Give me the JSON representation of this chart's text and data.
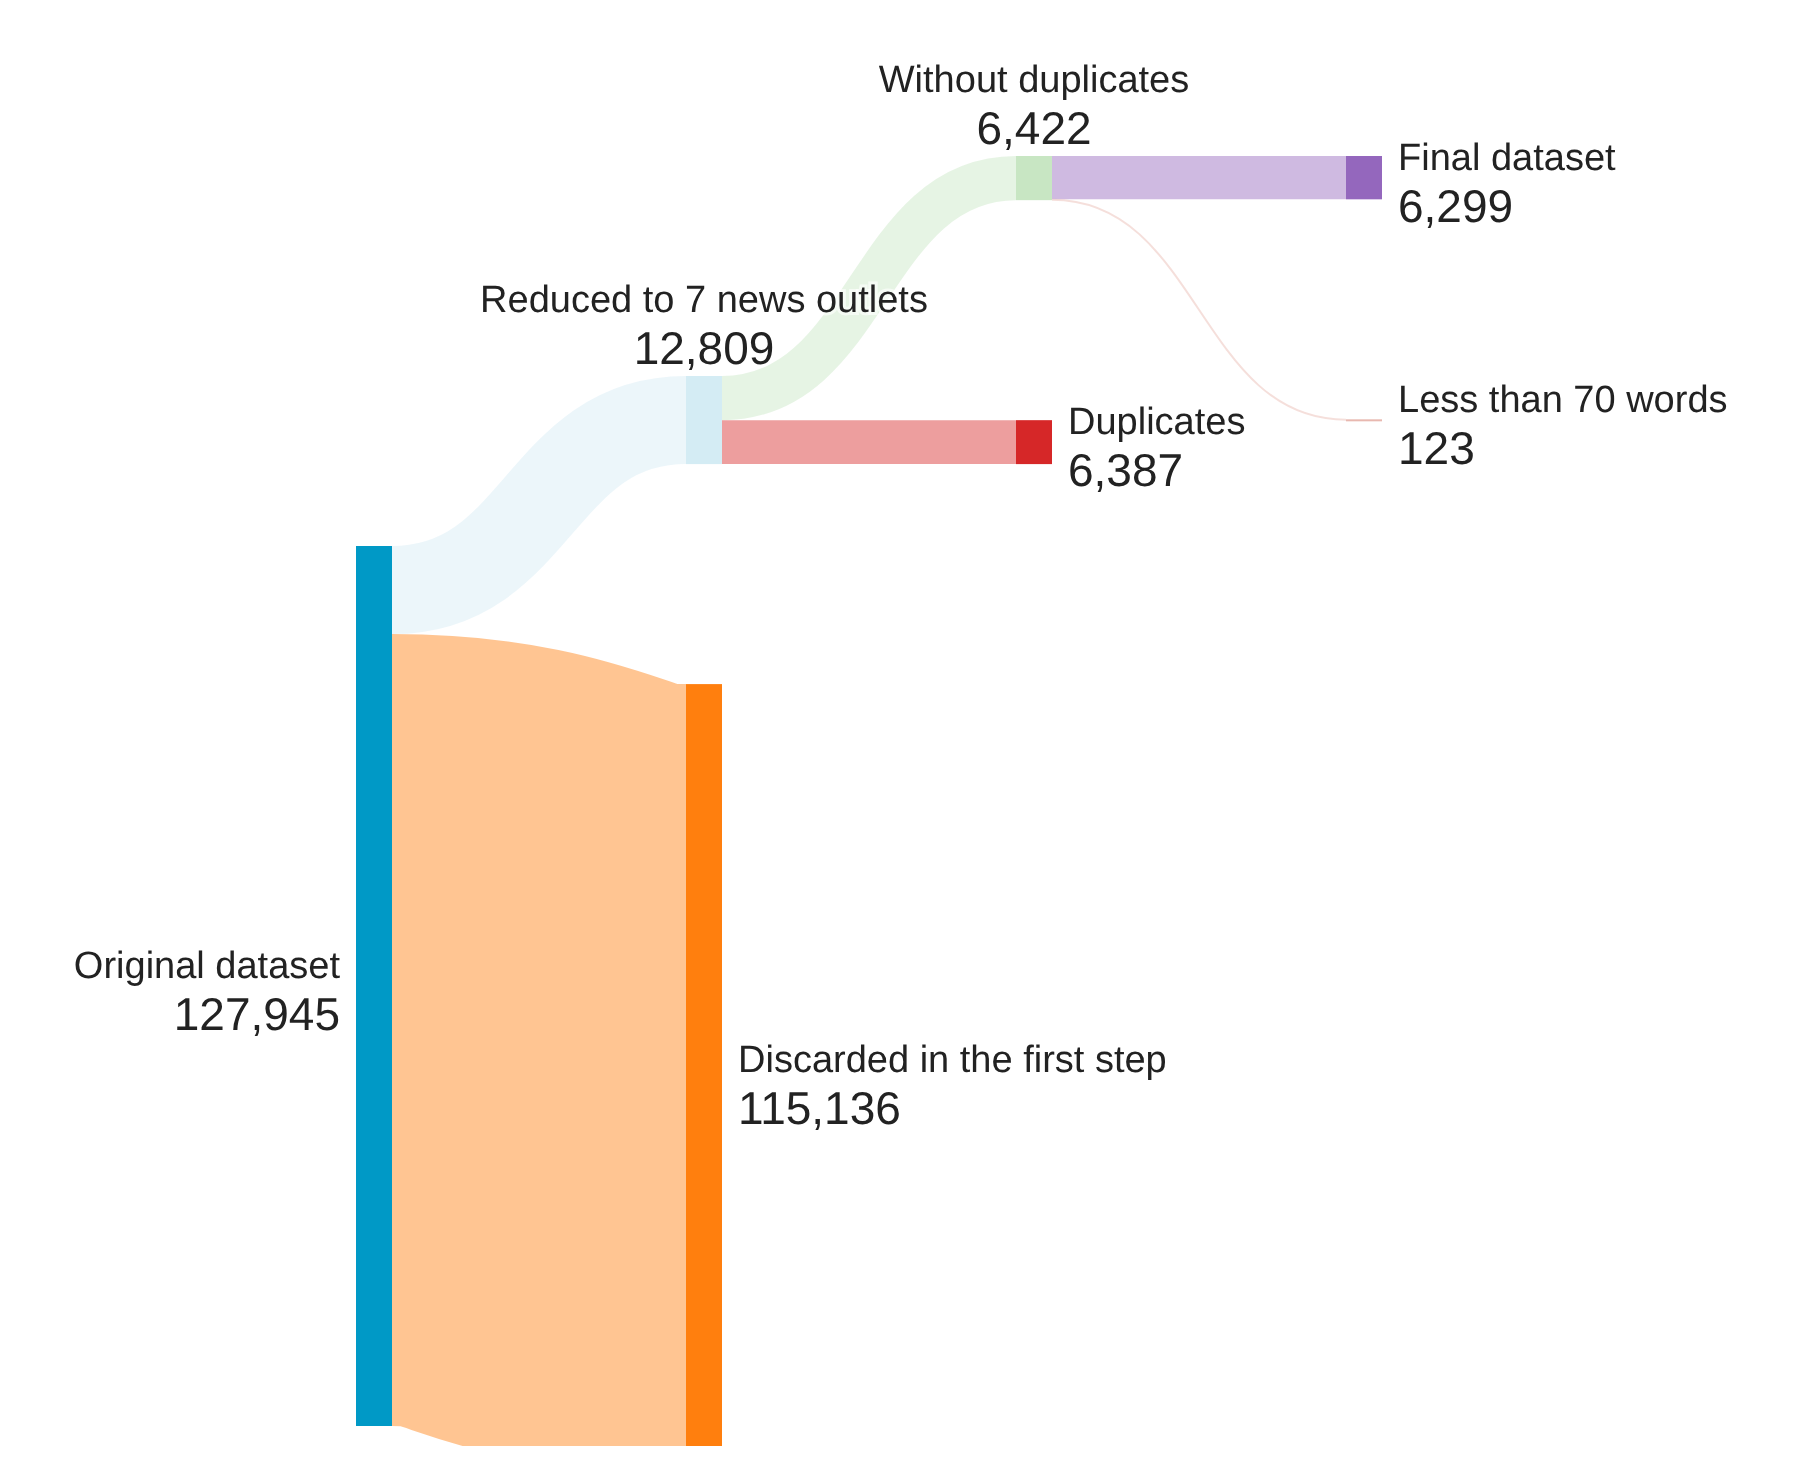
{
  "chart_data": {
    "type": "other",
    "categories": [
      "Original dataset",
      "Reduced to 7 news outlets",
      "Discarded in the first step",
      "Without duplicates",
      "Duplicates",
      "Final dataset",
      "Less than 70 words"
    ],
    "values": [
      127945,
      12809,
      115136,
      6422,
      6387,
      6299,
      123
    ],
    "value_labels": [
      "127,945",
      "12,809",
      "115,136",
      "6,422",
      "6,387",
      "6,299",
      "123"
    ],
    "colors": [
      "#0099c6",
      "#d4ecf4",
      "#ff7f0e",
      "#c8e6c3",
      "#d62728",
      "#9467bd",
      "#e8b8b0"
    ]
  }
}
